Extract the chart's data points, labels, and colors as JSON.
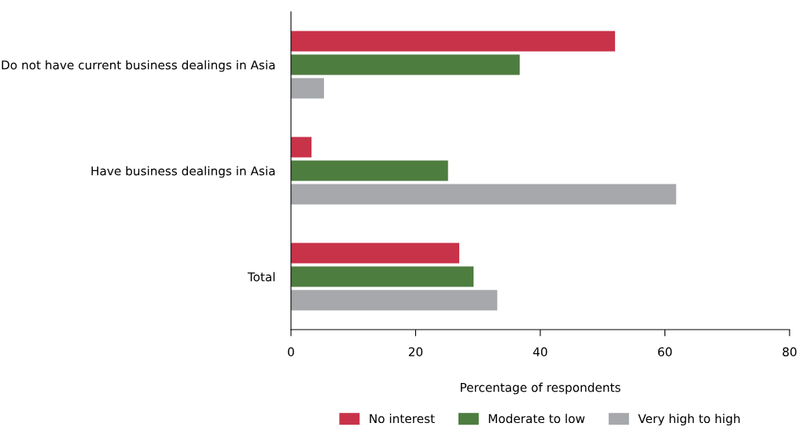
{
  "chart_data": {
    "type": "bar",
    "orientation": "horizontal",
    "categories": [
      "Do not have current business dealings in Asia",
      "Have business dealings in Asia",
      "Total"
    ],
    "series": [
      {
        "name": "No interest",
        "color": "#c8334a",
        "values": [
          52.0,
          3.3,
          27.0
        ]
      },
      {
        "name": "Moderate to low",
        "color": "#4e7d40",
        "values": [
          36.7,
          25.2,
          29.3
        ]
      },
      {
        "name": "Very high to high",
        "color": "#a6a8ab",
        "values": [
          5.3,
          61.8,
          33.1
        ]
      }
    ],
    "xlabel": "Percentage of respondents",
    "xlim": [
      0,
      80
    ],
    "xticks": [
      0,
      20,
      40,
      60,
      80
    ],
    "grid": false,
    "legend": "bottom"
  }
}
